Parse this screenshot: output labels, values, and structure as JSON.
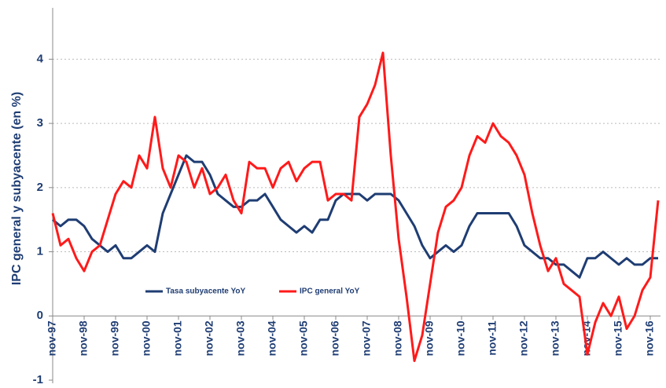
{
  "chart_data": {
    "type": "line",
    "y_label": "IPC general y subyacente (en %)",
    "x": [
      "nov-97",
      null,
      null,
      null,
      "nov-98",
      null,
      null,
      null,
      "nov-99",
      null,
      null,
      null,
      "nov-00",
      null,
      null,
      null,
      "nov-01",
      null,
      null,
      null,
      "nov-02",
      null,
      null,
      null,
      "nov-03",
      null,
      null,
      null,
      "nov-04",
      null,
      null,
      null,
      "nov-05",
      null,
      null,
      null,
      "nov-06",
      null,
      null,
      null,
      "nov-07",
      null,
      null,
      null,
      "nov-08",
      null,
      null,
      null,
      "nov-09",
      null,
      null,
      null,
      "nov-10",
      null,
      null,
      null,
      "nov-11",
      null,
      null,
      null,
      "nov-12",
      null,
      null,
      null,
      "nov-13",
      null,
      null,
      null,
      "nov-14",
      null,
      null,
      null,
      "nov-15",
      null,
      null,
      null,
      "nov-16",
      null
    ],
    "series": [
      {
        "name": "Tasa subyacente YoY",
        "color": "#1f3d73",
        "values": [
          1.5,
          1.4,
          1.5,
          1.5,
          1.4,
          1.2,
          1.1,
          1.0,
          1.1,
          0.9,
          0.9,
          1.0,
          1.1,
          1.0,
          1.6,
          1.9,
          2.2,
          2.5,
          2.4,
          2.4,
          2.2,
          1.9,
          1.8,
          1.7,
          1.7,
          1.8,
          1.8,
          1.9,
          1.7,
          1.5,
          1.4,
          1.3,
          1.4,
          1.3,
          1.5,
          1.5,
          1.8,
          1.9,
          1.9,
          1.9,
          1.8,
          1.9,
          1.9,
          1.9,
          1.8,
          1.6,
          1.4,
          1.1,
          0.9,
          1.0,
          1.1,
          1.0,
          1.1,
          1.4,
          1.6,
          1.6,
          1.6,
          1.6,
          1.6,
          1.4,
          1.1,
          1.0,
          0.9,
          0.9,
          0.8,
          0.8,
          0.7,
          0.6,
          0.9,
          0.9,
          1.0,
          0.9,
          0.8,
          0.9,
          0.8,
          0.8,
          0.9,
          0.9
        ]
      },
      {
        "name": "IPC general YoY",
        "color": "#ff1a1a",
        "values": [
          1.6,
          1.1,
          1.2,
          0.9,
          0.7,
          1.0,
          1.1,
          1.5,
          1.9,
          2.1,
          2.0,
          2.5,
          2.3,
          3.1,
          2.3,
          2.0,
          2.5,
          2.4,
          2.0,
          2.3,
          1.9,
          2.0,
          2.2,
          1.8,
          1.6,
          2.4,
          2.3,
          2.3,
          2.0,
          2.3,
          2.4,
          2.1,
          2.3,
          2.4,
          2.4,
          1.8,
          1.9,
          1.9,
          1.8,
          3.1,
          3.3,
          3.6,
          4.1,
          2.5,
          1.2,
          0.3,
          -0.7,
          -0.3,
          0.5,
          1.3,
          1.7,
          1.8,
          2.0,
          2.5,
          2.8,
          2.7,
          3.0,
          2.8,
          2.7,
          2.5,
          2.2,
          1.6,
          1.1,
          0.7,
          0.9,
          0.5,
          0.4,
          0.3,
          -0.6,
          -0.1,
          0.2,
          0.0,
          0.3,
          -0.2,
          0.0,
          0.4,
          0.6,
          1.8
        ]
      }
    ],
    "ylim": [
      -1,
      4.8
    ],
    "yticks": [
      -1,
      0,
      1,
      2,
      3,
      4
    ],
    "grid": true
  }
}
